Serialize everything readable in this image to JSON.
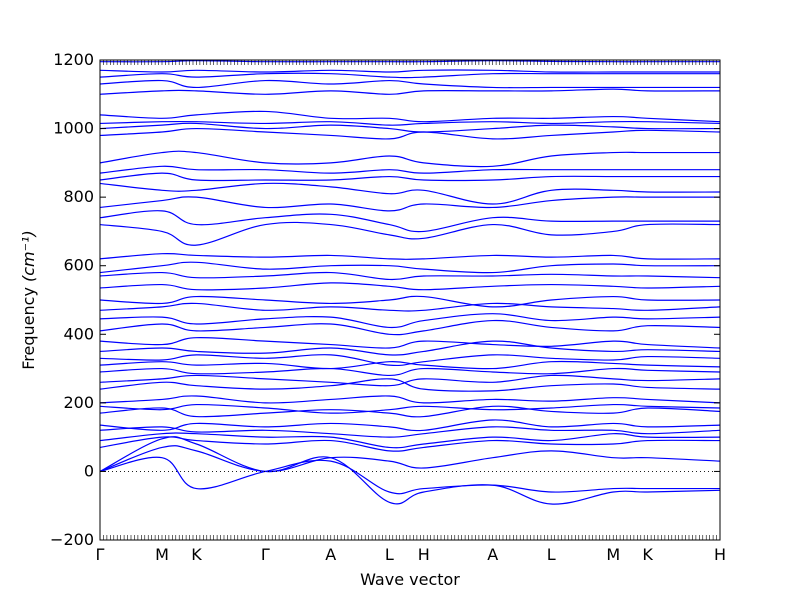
{
  "chart_data": {
    "type": "line",
    "title": "",
    "xlabel": "Wave vector",
    "ylabel": "Frequency",
    "ylabel_unit": "(cm⁻¹)",
    "ylim": [
      -200,
      1200
    ],
    "yticks": [
      -200,
      0,
      200,
      400,
      600,
      800,
      1000,
      1200
    ],
    "xlim": [
      0,
      18
    ],
    "x_ticks": [
      {
        "label": "Γ",
        "x": 0
      },
      {
        "label": "M",
        "x": 1.8
      },
      {
        "label": "K",
        "x": 2.8
      },
      {
        "label": "Γ",
        "x": 4.8
      },
      {
        "label": "A",
        "x": 6.7
      },
      {
        "label": "L",
        "x": 8.4
      },
      {
        "label": "H",
        "x": 9.4
      },
      {
        "label": "A",
        "x": 11.4
      },
      {
        "label": "L",
        "x": 13.1
      },
      {
        "label": "M",
        "x": 14.9
      },
      {
        "label": "K",
        "x": 15.9
      },
      {
        "label": "H",
        "x": 18
      }
    ],
    "zero_line": {
      "y": 0,
      "style": "dotted"
    },
    "grid": false,
    "line_color": "#0000ff",
    "series": [
      {
        "x": [
          0,
          1.8,
          2.8,
          4.8,
          6.7,
          8.4,
          9.4,
          11.4,
          13.1,
          14.9,
          15.9,
          18
        ],
        "y": [
          0,
          70,
          60,
          0,
          40,
          30,
          10,
          40,
          60,
          40,
          40,
          30
        ]
      },
      {
        "x": [
          0,
          1.8,
          2.8,
          4.8,
          6.7,
          8.4,
          9.4,
          11.4,
          13.1,
          14.9,
          15.9,
          18
        ],
        "y": [
          0,
          40,
          -50,
          0,
          30,
          -60,
          -50,
          -40,
          -60,
          -50,
          -50,
          -50
        ]
      },
      {
        "x": [
          0,
          1.8,
          2.8,
          4.8,
          6.7,
          8.4,
          9.4,
          11.4,
          13.1,
          14.9,
          15.9,
          18
        ],
        "y": [
          0,
          95,
          80,
          0,
          40,
          -90,
          -60,
          -40,
          -95,
          -60,
          -60,
          -55
        ]
      },
      {
        "x": [
          0,
          1.8,
          2.8,
          4.8,
          6.7,
          8.4,
          9.4,
          11.4,
          13.1,
          14.9,
          15.9,
          18
        ],
        "y": [
          70,
          100,
          90,
          80,
          90,
          60,
          70,
          90,
          80,
          80,
          90,
          90
        ]
      },
      {
        "x": [
          0,
          1.8,
          2.8,
          4.8,
          6.7,
          8.4,
          9.4,
          11.4,
          13.1,
          14.9,
          15.9,
          18
        ],
        "y": [
          90,
          110,
          110,
          100,
          100,
          70,
          80,
          100,
          90,
          110,
          100,
          100
        ]
      },
      {
        "x": [
          0,
          1.8,
          2.8,
          4.8,
          6.7,
          8.4,
          9.4,
          11.4,
          13.1,
          14.9,
          15.9,
          18
        ],
        "y": [
          120,
          130,
          115,
          120,
          110,
          100,
          110,
          130,
          120,
          120,
          110,
          120
        ]
      },
      {
        "x": [
          0,
          1.8,
          2.8,
          4.8,
          6.7,
          8.4,
          9.4,
          11.4,
          13.1,
          14.9,
          15.9,
          18
        ],
        "y": [
          135,
          120,
          140,
          130,
          140,
          130,
          120,
          150,
          130,
          140,
          130,
          135
        ]
      },
      {
        "x": [
          0,
          1.8,
          2.8,
          4.8,
          6.7,
          8.4,
          9.4,
          11.4,
          13.1,
          14.9,
          15.9,
          18
        ],
        "y": [
          170,
          185,
          160,
          170,
          180,
          170,
          160,
          190,
          175,
          170,
          185,
          175
        ]
      },
      {
        "x": [
          0,
          1.8,
          2.8,
          4.8,
          6.7,
          8.4,
          9.4,
          11.4,
          13.1,
          14.9,
          15.9,
          18
        ],
        "y": [
          190,
          180,
          195,
          185,
          170,
          180,
          190,
          180,
          185,
          195,
          190,
          185
        ]
      },
      {
        "x": [
          0,
          1.8,
          2.8,
          4.8,
          6.7,
          8.4,
          9.4,
          11.4,
          13.1,
          14.9,
          15.9,
          18
        ],
        "y": [
          200,
          210,
          220,
          200,
          210,
          220,
          200,
          210,
          205,
          215,
          210,
          200
        ]
      },
      {
        "x": [
          0,
          1.8,
          2.8,
          4.8,
          6.7,
          8.4,
          9.4,
          11.4,
          13.1,
          14.9,
          15.9,
          18
        ],
        "y": [
          240,
          260,
          250,
          240,
          250,
          270,
          240,
          235,
          250,
          255,
          245,
          240
        ]
      },
      {
        "x": [
          0,
          1.8,
          2.8,
          4.8,
          6.7,
          8.4,
          9.4,
          11.4,
          13.1,
          14.9,
          15.9,
          18
        ],
        "y": [
          260,
          270,
          280,
          270,
          260,
          250,
          270,
          260,
          280,
          270,
          265,
          270
        ]
      },
      {
        "x": [
          0,
          1.8,
          2.8,
          4.8,
          6.7,
          8.4,
          9.4,
          11.4,
          13.1,
          14.9,
          15.9,
          18
        ],
        "y": [
          290,
          300,
          285,
          290,
          300,
          280,
          300,
          290,
          285,
          300,
          295,
          290
        ]
      },
      {
        "x": [
          0,
          1.8,
          2.8,
          4.8,
          6.7,
          8.4,
          9.4,
          11.4,
          13.1,
          14.9,
          15.9,
          18
        ],
        "y": [
          310,
          320,
          310,
          315,
          300,
          320,
          310,
          300,
          320,
          315,
          310,
          305
        ]
      },
      {
        "x": [
          0,
          1.8,
          2.8,
          4.8,
          6.7,
          8.4,
          9.4,
          11.4,
          13.1,
          14.9,
          15.9,
          18
        ],
        "y": [
          330,
          325,
          340,
          330,
          340,
          310,
          320,
          340,
          330,
          325,
          335,
          330
        ]
      },
      {
        "x": [
          0,
          1.8,
          2.8,
          4.8,
          6.7,
          8.4,
          9.4,
          11.4,
          13.1,
          14.9,
          15.9,
          18
        ],
        "y": [
          350,
          360,
          350,
          345,
          360,
          340,
          350,
          380,
          360,
          350,
          355,
          350
        ]
      },
      {
        "x": [
          0,
          1.8,
          2.8,
          4.8,
          6.7,
          8.4,
          9.4,
          11.4,
          13.1,
          14.9,
          15.9,
          18
        ],
        "y": [
          380,
          370,
          390,
          380,
          370,
          360,
          380,
          370,
          365,
          380,
          370,
          360
        ]
      },
      {
        "x": [
          0,
          1.8,
          2.8,
          4.8,
          6.7,
          8.4,
          9.4,
          11.4,
          13.1,
          14.9,
          15.9,
          18
        ],
        "y": [
          410,
          430,
          410,
          420,
          430,
          400,
          410,
          440,
          420,
          410,
          425,
          420
        ]
      },
      {
        "x": [
          0,
          1.8,
          2.8,
          4.8,
          6.7,
          8.4,
          9.4,
          11.4,
          13.1,
          14.9,
          15.9,
          18
        ],
        "y": [
          445,
          450,
          430,
          445,
          450,
          420,
          440,
          460,
          440,
          450,
          445,
          450
        ]
      },
      {
        "x": [
          0,
          1.8,
          2.8,
          4.8,
          6.7,
          8.4,
          9.4,
          11.4,
          13.1,
          14.9,
          15.9,
          18
        ],
        "y": [
          470,
          480,
          490,
          470,
          480,
          470,
          470,
          490,
          480,
          475,
          470,
          480
        ]
      },
      {
        "x": [
          0,
          1.8,
          2.8,
          4.8,
          6.7,
          8.4,
          9.4,
          11.4,
          13.1,
          14.9,
          15.9,
          18
        ],
        "y": [
          500,
          490,
          510,
          500,
          490,
          500,
          510,
          480,
          500,
          510,
          500,
          500
        ]
      },
      {
        "x": [
          0,
          1.8,
          2.8,
          4.8,
          6.7,
          8.4,
          9.4,
          11.4,
          13.1,
          14.9,
          15.9,
          18
        ],
        "y": [
          535,
          545,
          530,
          535,
          550,
          540,
          530,
          540,
          545,
          540,
          535,
          540
        ]
      },
      {
        "x": [
          0,
          1.8,
          2.8,
          4.8,
          6.7,
          8.4,
          9.4,
          11.4,
          13.1,
          14.9,
          15.9,
          18
        ],
        "y": [
          570,
          580,
          565,
          570,
          580,
          560,
          570,
          570,
          575,
          570,
          570,
          565
        ]
      },
      {
        "x": [
          0,
          1.8,
          2.8,
          4.8,
          6.7,
          8.4,
          9.4,
          11.4,
          13.1,
          14.9,
          15.9,
          18
        ],
        "y": [
          580,
          600,
          610,
          590,
          600,
          600,
          590,
          580,
          600,
          605,
          600,
          600
        ]
      },
      {
        "x": [
          0,
          1.8,
          2.8,
          4.8,
          6.7,
          8.4,
          9.4,
          11.4,
          13.1,
          14.9,
          15.9,
          18
        ],
        "y": [
          620,
          635,
          630,
          625,
          630,
          620,
          620,
          630,
          625,
          630,
          620,
          620
        ]
      },
      {
        "x": [
          0,
          1.8,
          2.8,
          4.8,
          6.7,
          8.4,
          9.4,
          11.4,
          13.1,
          14.9,
          15.9,
          18
        ],
        "y": [
          720,
          700,
          660,
          720,
          720,
          690,
          680,
          720,
          690,
          700,
          720,
          720
        ]
      },
      {
        "x": [
          0,
          1.8,
          2.8,
          4.8,
          6.7,
          8.4,
          9.4,
          11.4,
          13.1,
          14.9,
          15.9,
          18
        ],
        "y": [
          740,
          760,
          720,
          740,
          750,
          720,
          700,
          740,
          730,
          730,
          730,
          730
        ]
      },
      {
        "x": [
          0,
          1.8,
          2.8,
          4.8,
          6.7,
          8.4,
          9.4,
          11.4,
          13.1,
          14.9,
          15.9,
          18
        ],
        "y": [
          770,
          790,
          800,
          770,
          780,
          760,
          780,
          770,
          790,
          800,
          800,
          800
        ]
      },
      {
        "x": [
          0,
          1.8,
          2.8,
          4.8,
          6.7,
          8.4,
          9.4,
          11.4,
          13.1,
          14.9,
          15.9,
          18
        ],
        "y": [
          840,
          820,
          820,
          840,
          830,
          810,
          820,
          780,
          820,
          820,
          815,
          815
        ]
      },
      {
        "x": [
          0,
          1.8,
          2.8,
          4.8,
          6.7,
          8.4,
          9.4,
          11.4,
          13.1,
          14.9,
          15.9,
          18
        ],
        "y": [
          850,
          870,
          850,
          850,
          850,
          860,
          850,
          850,
          860,
          860,
          860,
          860
        ]
      },
      {
        "x": [
          0,
          1.8,
          2.8,
          4.8,
          6.7,
          8.4,
          9.4,
          11.4,
          13.1,
          14.9,
          15.9,
          18
        ],
        "y": [
          870,
          890,
          880,
          880,
          870,
          880,
          870,
          880,
          880,
          880,
          880,
          880
        ]
      },
      {
        "x": [
          0,
          1.8,
          2.8,
          4.8,
          6.7,
          8.4,
          9.4,
          11.4,
          13.1,
          14.9,
          15.9,
          18
        ],
        "y": [
          900,
          930,
          930,
          900,
          900,
          920,
          900,
          890,
          920,
          930,
          930,
          930
        ]
      },
      {
        "x": [
          0,
          1.8,
          2.8,
          4.8,
          6.7,
          8.4,
          9.4,
          11.4,
          13.1,
          14.9,
          15.9,
          18
        ],
        "y": [
          980,
          990,
          1000,
          990,
          980,
          970,
          990,
          970,
          980,
          990,
          995,
          990
        ]
      },
      {
        "x": [
          0,
          1.8,
          2.8,
          4.8,
          6.7,
          8.4,
          9.4,
          11.4,
          13.1,
          14.9,
          15.9,
          18
        ],
        "y": [
          1000,
          1010,
          1015,
          1000,
          1010,
          1000,
          990,
          1000,
          1010,
          1005,
          1000,
          1000
        ]
      },
      {
        "x": [
          0,
          1.8,
          2.8,
          4.8,
          6.7,
          8.4,
          9.4,
          11.4,
          13.1,
          14.9,
          15.9,
          18
        ],
        "y": [
          1015,
          1020,
          1020,
          1015,
          1020,
          1010,
          1015,
          1020,
          1015,
          1020,
          1020,
          1015
        ]
      },
      {
        "x": [
          0,
          1.8,
          2.8,
          4.8,
          6.7,
          8.4,
          9.4,
          11.4,
          13.1,
          14.9,
          15.9,
          18
        ],
        "y": [
          1040,
          1030,
          1040,
          1050,
          1030,
          1030,
          1020,
          1030,
          1030,
          1035,
          1030,
          1020
        ]
      },
      {
        "x": [
          0,
          1.8,
          2.8,
          4.8,
          6.7,
          8.4,
          9.4,
          11.4,
          13.1,
          14.9,
          15.9,
          18
        ],
        "y": [
          1100,
          1110,
          1110,
          1100,
          1110,
          1100,
          1110,
          1110,
          1110,
          1115,
          1110,
          1110
        ]
      },
      {
        "x": [
          0,
          1.8,
          2.8,
          4.8,
          6.7,
          8.4,
          9.4,
          11.4,
          13.1,
          14.9,
          15.9,
          18
        ],
        "y": [
          1130,
          1140,
          1120,
          1140,
          1130,
          1140,
          1130,
          1120,
          1120,
          1120,
          1120,
          1120
        ]
      },
      {
        "x": [
          0,
          1.8,
          2.8,
          4.8,
          6.7,
          8.4,
          9.4,
          11.4,
          13.1,
          14.9,
          15.9,
          18
        ],
        "y": [
          1150,
          1160,
          1150,
          1160,
          1160,
          1150,
          1150,
          1160,
          1160,
          1160,
          1160,
          1160
        ]
      },
      {
        "x": [
          0,
          1.8,
          2.8,
          4.8,
          6.7,
          8.4,
          9.4,
          11.4,
          13.1,
          14.9,
          15.9,
          18
        ],
        "y": [
          1170,
          1165,
          1170,
          1165,
          1170,
          1165,
          1170,
          1170,
          1165,
          1165,
          1165,
          1165
        ]
      },
      {
        "x": [
          0,
          1.8,
          2.8,
          4.8,
          6.7,
          8.4,
          9.4,
          11.4,
          13.1,
          14.9,
          15.9,
          18
        ],
        "y": [
          1195,
          1195,
          1198,
          1195,
          1195,
          1195,
          1195,
          1198,
          1196,
          1195,
          1195,
          1195
        ]
      }
    ]
  }
}
